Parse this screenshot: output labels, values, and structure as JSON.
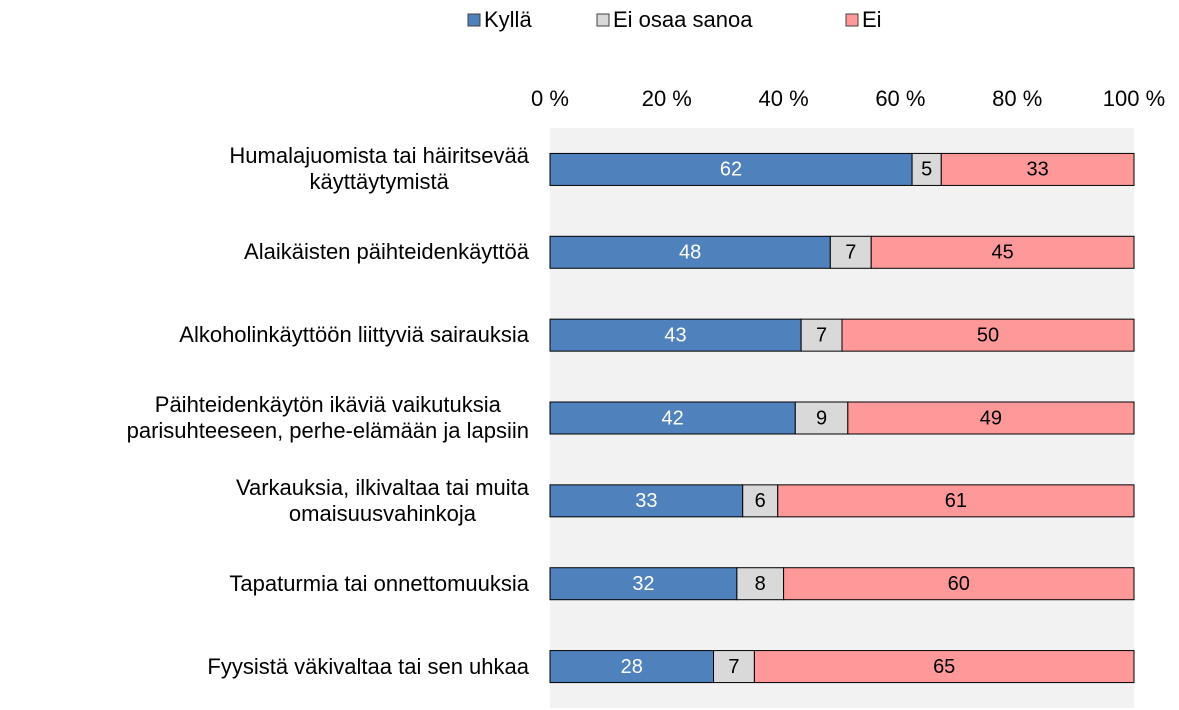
{
  "chart_data": {
    "type": "stacked_barh",
    "categories": [
      "Humalajuomista tai häiritsevää\nkäyttäytymistä",
      "Alaikäisten päihteidenkäyttöä",
      "Alkoholinkäyttöön liittyviä sairauksia",
      "Päihteidenkäytön ikäviä vaikutuksia\nparisuhteeseen, perhe-elämään ja lapsiin",
      "Varkauksia, ilkivaltaa tai muita\nomaisuusvahinkoja",
      "Tapaturmia tai onnettomuuksia",
      "Fyysistä väkivaltaa tai sen uhkaa"
    ],
    "series": [
      {
        "name": "Kyllä",
        "color": "#4f81bd",
        "values": [
          62,
          48,
          43,
          42,
          33,
          32,
          28
        ]
      },
      {
        "name": "Ei osaa sanoa",
        "color": "#d9d9d9",
        "values": [
          5,
          7,
          7,
          9,
          6,
          8,
          7
        ]
      },
      {
        "name": "Ei",
        "color": "#ff9999",
        "values": [
          33,
          45,
          50,
          49,
          61,
          60,
          65
        ]
      }
    ],
    "xlim": [
      0,
      100
    ],
    "xticks": [
      {
        "value": 0,
        "label": "0 %"
      },
      {
        "value": 20,
        "label": "20 %"
      },
      {
        "value": 40,
        "label": "40 %"
      },
      {
        "value": 60,
        "label": "60 %"
      },
      {
        "value": 80,
        "label": "80 %"
      },
      {
        "value": 100,
        "label": "100 %"
      }
    ],
    "legend": "top"
  }
}
